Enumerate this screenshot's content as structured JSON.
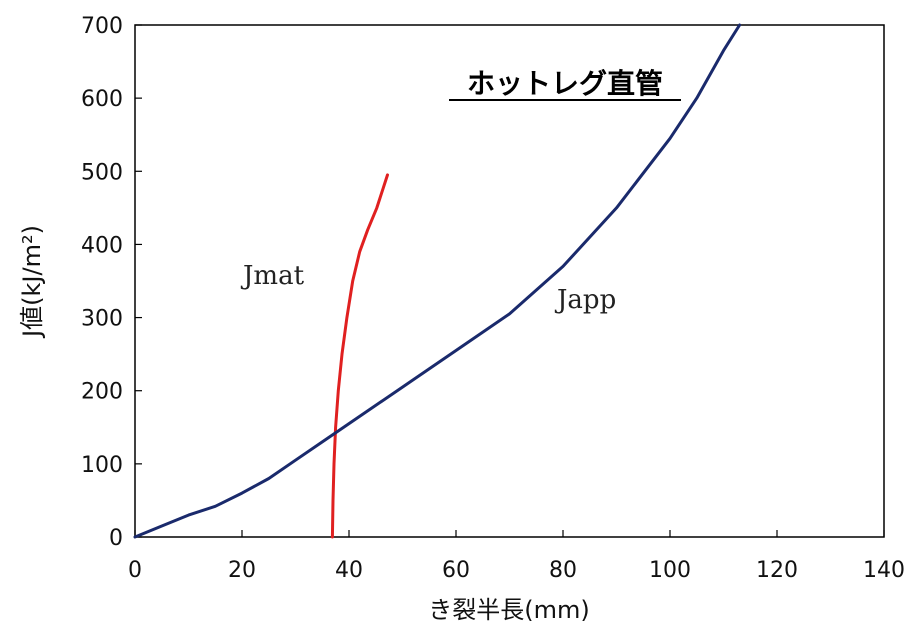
{
  "chart_data": {
    "type": "line",
    "title": "ホットレグ直管",
    "xlabel": "き裂半長(mm)",
    "ylabel": "J値(kJ/m²)",
    "xlim": [
      0,
      140
    ],
    "ylim": [
      0,
      700
    ],
    "xticks": [
      0,
      20,
      40,
      60,
      80,
      100,
      120,
      140
    ],
    "yticks": [
      0,
      100,
      200,
      300,
      400,
      500,
      600,
      700
    ],
    "grid": false,
    "legend": "none",
    "series": [
      {
        "name": "Jmat",
        "color": "#e02020",
        "x": [
          36.9,
          37.0,
          37.2,
          37.5,
          38.0,
          38.7,
          39.6,
          40.7,
          42.0,
          43.5,
          45.2,
          47.2
        ],
        "y": [
          0,
          50,
          100,
          150,
          200,
          250,
          300,
          350,
          390,
          420,
          450,
          495
        ]
      },
      {
        "name": "Japp",
        "color": "#1a2a6c",
        "x": [
          0,
          5,
          10,
          15,
          20,
          25,
          30,
          35,
          40,
          50,
          60,
          70,
          80,
          90,
          100,
          105,
          110,
          113
        ],
        "y": [
          0,
          15,
          30,
          42,
          60,
          80,
          105,
          130,
          155,
          205,
          255,
          305,
          370,
          450,
          545,
          600,
          665,
          700
        ]
      }
    ]
  }
}
